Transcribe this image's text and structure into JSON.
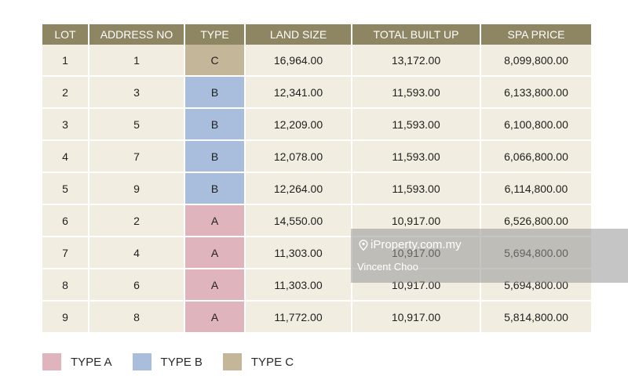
{
  "table": {
    "headers": [
      "LOT",
      "ADDRESS NO",
      "TYPE",
      "LAND SIZE",
      "TOTAL BUILT UP",
      "SPA PRICE"
    ],
    "rows": [
      {
        "lot": "1",
        "address_no": "1",
        "type": "C",
        "land_size": "16,964.00",
        "total_built_up": "13,172.00",
        "spa_price": "8,099,800.00"
      },
      {
        "lot": "2",
        "address_no": "3",
        "type": "B",
        "land_size": "12,341.00",
        "total_built_up": "11,593.00",
        "spa_price": "6,133,800.00"
      },
      {
        "lot": "3",
        "address_no": "5",
        "type": "B",
        "land_size": "12,209.00",
        "total_built_up": "11,593.00",
        "spa_price": "6,100,800.00"
      },
      {
        "lot": "4",
        "address_no": "7",
        "type": "B",
        "land_size": "12,078.00",
        "total_built_up": "11,593.00",
        "spa_price": "6,066,800.00"
      },
      {
        "lot": "5",
        "address_no": "9",
        "type": "B",
        "land_size": "12,264.00",
        "total_built_up": "11,593.00",
        "spa_price": "6,114,800.00"
      },
      {
        "lot": "6",
        "address_no": "2",
        "type": "A",
        "land_size": "14,550.00",
        "total_built_up": "10,917.00",
        "spa_price": "6,526,800.00"
      },
      {
        "lot": "7",
        "address_no": "4",
        "type": "A",
        "land_size": "11,303.00",
        "total_built_up": "10,917.00",
        "spa_price": "5,694,800.00"
      },
      {
        "lot": "8",
        "address_no": "6",
        "type": "A",
        "land_size": "11,303.00",
        "total_built_up": "10,917.00",
        "spa_price": "5,694,800.00"
      },
      {
        "lot": "9",
        "address_no": "8",
        "type": "A",
        "land_size": "11,772.00",
        "total_built_up": "10,917.00",
        "spa_price": "5,814,800.00"
      }
    ]
  },
  "type_colors": {
    "A": "#e0b4bd",
    "B": "#a9bedd",
    "C": "#c4b699"
  },
  "legend": [
    {
      "key": "A",
      "label": "TYPE A"
    },
    {
      "key": "B",
      "label": "TYPE B"
    },
    {
      "key": "C",
      "label": "TYPE C"
    }
  ],
  "watermark": {
    "brand": "iProperty.com.my",
    "agent": "Vincent Choo",
    "icon": "map-pin-icon"
  }
}
